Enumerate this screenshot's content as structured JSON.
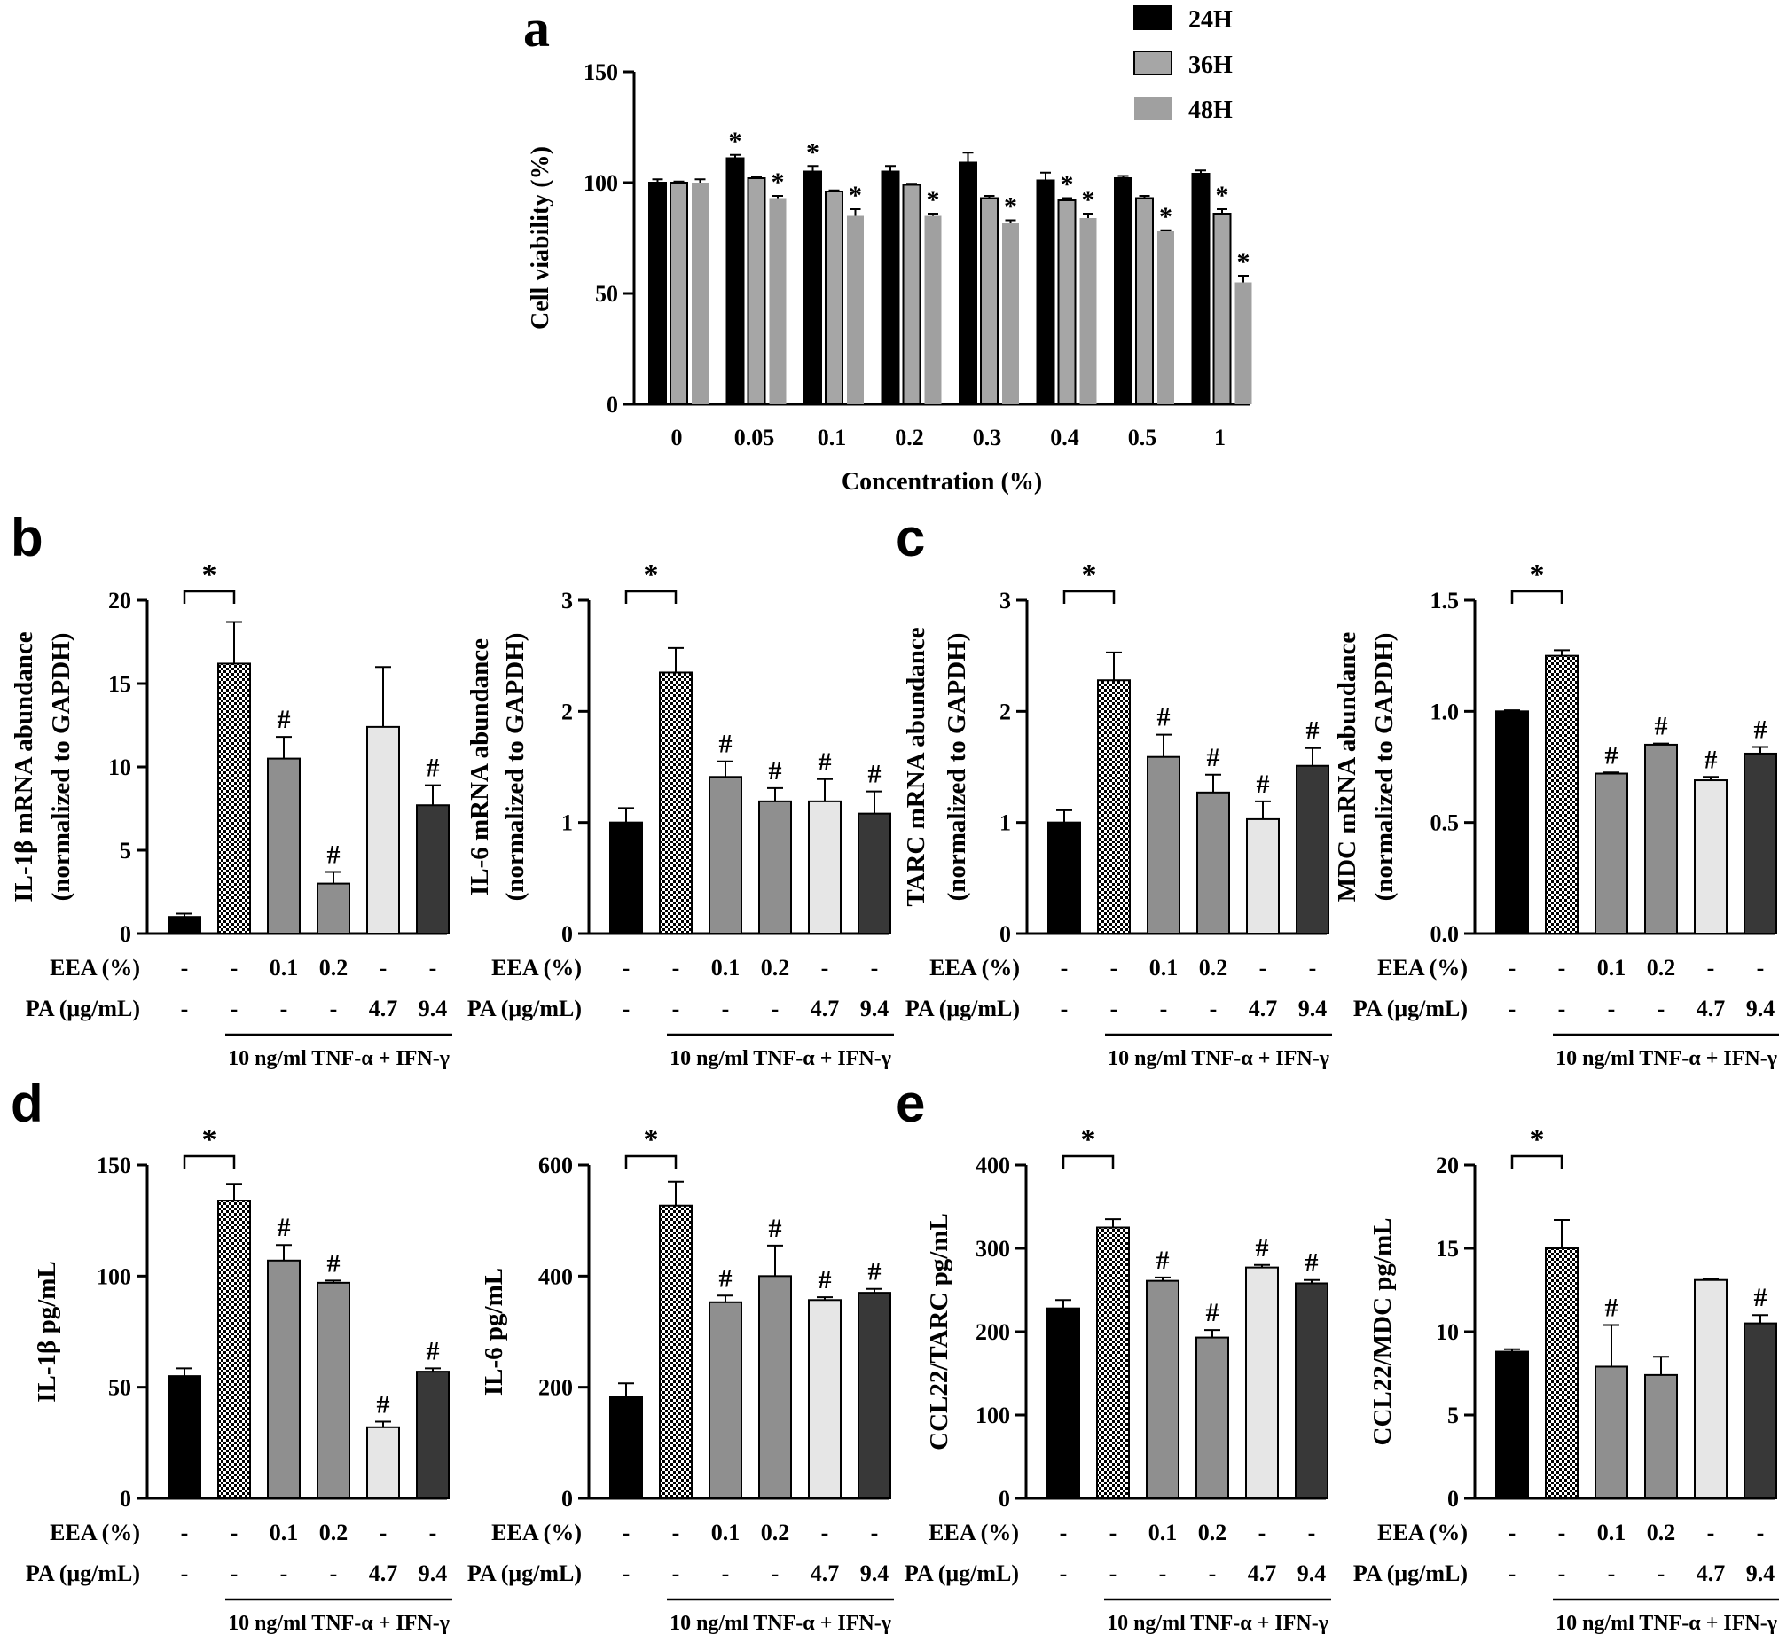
{
  "colors": {
    "black": "#000000",
    "gray36": "#a6a6a6",
    "gray48": "#a0a0a0",
    "mid": "#8f8f8f",
    "light": "#e6e6e6",
    "dark": "#383838",
    "white": "#ffffff"
  },
  "chart_data": [
    {
      "panel": "a",
      "type": "bar",
      "ylabel": "Cell viability (%)",
      "xlabel": "Concentration (%)",
      "categories": [
        "0",
        "0.05",
        "0.1",
        "0.2",
        "0.3",
        "0.4",
        "0.5",
        "1"
      ],
      "ylim": [
        0,
        150
      ],
      "yticks": [
        "0",
        "50",
        "100",
        "150"
      ],
      "legend": [
        "24H",
        "36H",
        "48H"
      ],
      "series": [
        {
          "name": "24H",
          "values": [
            100,
            111,
            105,
            105,
            109,
            101,
            102,
            104
          ],
          "errors": [
            1.5,
            1.5,
            2.5,
            2.5,
            4.5,
            3.5,
            1,
            1.5
          ],
          "marks": [
            "",
            "*",
            "*",
            "",
            "",
            "",
            "",
            ""
          ]
        },
        {
          "name": "36H",
          "values": [
            100,
            102,
            96,
            99,
            93,
            92,
            93,
            86
          ],
          "errors": [
            0.5,
            0.5,
            0.5,
            0.5,
            1,
            1,
            1,
            2
          ],
          "marks": [
            "",
            "",
            "",
            "",
            "",
            "*",
            "",
            "*"
          ]
        },
        {
          "name": "48H",
          "values": [
            100,
            93,
            85,
            85,
            82,
            84,
            78,
            55
          ],
          "errors": [
            1.5,
            1,
            3,
            1,
            1,
            2,
            0.5,
            3
          ],
          "marks": [
            "",
            "*",
            "*",
            "*",
            "*",
            "*",
            "*",
            "*"
          ]
        }
      ]
    },
    {
      "panel": "b",
      "type": "bar",
      "ylabel": [
        "IL-1β mRNA abundance",
        "(normalized to GAPDH)"
      ],
      "ylim": [
        0,
        20
      ],
      "yticks": [
        "0",
        "5",
        "10",
        "15",
        "20"
      ],
      "values": [
        1,
        16.2,
        10.5,
        3,
        12.4,
        7.7
      ],
      "errors": [
        0.2,
        2.5,
        1.3,
        0.7,
        3.6,
        1.2
      ],
      "marks": [
        "",
        "",
        "#",
        "#",
        "",
        "#"
      ],
      "sig": "*"
    },
    {
      "panel": "",
      "type": "bar",
      "ylabel": [
        "IL-6 mRNA abundance",
        "(normalized to GAPDH)"
      ],
      "ylim": [
        0,
        3
      ],
      "yticks": [
        "0",
        "1",
        "2",
        "3"
      ],
      "values": [
        1,
        2.35,
        1.41,
        1.19,
        1.19,
        1.08
      ],
      "errors": [
        0.13,
        0.22,
        0.14,
        0.12,
        0.2,
        0.2
      ],
      "marks": [
        "",
        "",
        "#",
        "#",
        "#",
        "#"
      ],
      "sig": "*"
    },
    {
      "panel": "c",
      "type": "bar",
      "ylabel": [
        "TARC mRNA abundance",
        "(normalized to GAPDH)"
      ],
      "ylim": [
        0,
        3
      ],
      "yticks": [
        "0",
        "1",
        "2",
        "3"
      ],
      "values": [
        1,
        2.28,
        1.59,
        1.27,
        1.03,
        1.51
      ],
      "errors": [
        0.11,
        0.25,
        0.2,
        0.16,
        0.16,
        0.16
      ],
      "marks": [
        "",
        "",
        "#",
        "#",
        "#",
        "#"
      ],
      "sig": "*"
    },
    {
      "panel": "",
      "type": "bar",
      "ylabel": [
        "MDC mRNA abundance",
        "(normalized to GAPDH)"
      ],
      "ylim": [
        0,
        1.5
      ],
      "yticks": [
        "0.0",
        "0.5",
        "1.0",
        "1.5"
      ],
      "values": [
        1,
        1.25,
        0.72,
        0.85,
        0.69,
        0.81
      ],
      "errors": [
        0.005,
        0.025,
        0.005,
        0.005,
        0.015,
        0.03
      ],
      "marks": [
        "",
        "",
        "#",
        "#",
        "#",
        "#"
      ],
      "sig": "*"
    },
    {
      "panel": "d",
      "type": "bar",
      "ylabel": [
        "IL-1β pg/mL"
      ],
      "ylim": [
        0,
        150
      ],
      "yticks": [
        "0",
        "50",
        "100",
        "150"
      ],
      "values": [
        55,
        134,
        107,
        97,
        32,
        57
      ],
      "errors": [
        3.5,
        7.5,
        7,
        1,
        2.5,
        1.5
      ],
      "marks": [
        "",
        "",
        "#",
        "#",
        "#",
        "#"
      ],
      "sig": "*"
    },
    {
      "panel": "",
      "type": "bar",
      "ylabel": [
        "IL-6 pg/mL"
      ],
      "ylim": [
        0,
        600
      ],
      "yticks": [
        "0",
        "200",
        "400",
        "600"
      ],
      "values": [
        182,
        527,
        353,
        400,
        357,
        370
      ],
      "errors": [
        25,
        43,
        12,
        55,
        5,
        7
      ],
      "marks": [
        "",
        "",
        "#",
        "#",
        "#",
        "#"
      ],
      "sig": "*"
    },
    {
      "panel": "e",
      "type": "bar",
      "ylabel": [
        "CCL22/TARC pg/mL"
      ],
      "ylim": [
        0,
        400
      ],
      "yticks": [
        "0",
        "100",
        "200",
        "300",
        "400"
      ],
      "values": [
        228,
        325,
        261,
        193,
        277,
        258
      ],
      "errors": [
        10,
        10,
        4,
        9,
        3,
        4
      ],
      "marks": [
        "",
        "",
        "#",
        "#",
        "#",
        "#"
      ],
      "sig": "*"
    },
    {
      "panel": "",
      "type": "bar",
      "ylabel": [
        "CCL22/MDC pg/mL"
      ],
      "ylim": [
        0,
        20
      ],
      "yticks": [
        "0",
        "5",
        "10",
        "15",
        "20"
      ],
      "values": [
        8.8,
        15,
        7.9,
        7.4,
        13.1,
        10.5
      ],
      "errors": [
        0.15,
        1.7,
        2.5,
        1.1,
        0.05,
        0.5
      ],
      "marks": [
        "",
        "",
        "#",
        "",
        "",
        "#"
      ],
      "sig": "*"
    }
  ],
  "treatments": {
    "eea_label": "EEA (%)",
    "pa_label": "PA (μg/mL)",
    "eea_values": [
      "-",
      "-",
      "0.1",
      "0.2",
      "-",
      "-"
    ],
    "pa_values": [
      "-",
      "-",
      "-",
      "-",
      "4.7",
      "9.4"
    ],
    "stimulus": "10 ng/ml TNF-α + IFN-γ"
  }
}
